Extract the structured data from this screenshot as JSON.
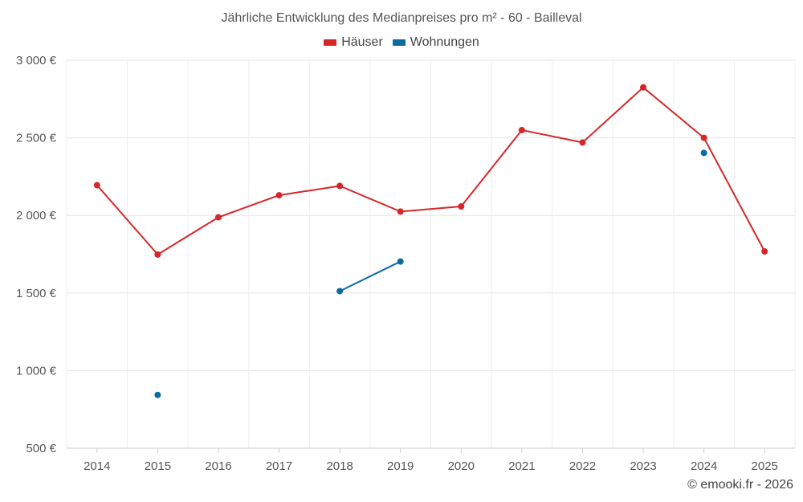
{
  "chart_data": {
    "type": "line",
    "title": "Jährliche Entwicklung des Medianpreises pro m² - 60 - Bailleval",
    "categories": [
      "2014",
      "2015",
      "2016",
      "2017",
      "2018",
      "2019",
      "2020",
      "2021",
      "2022",
      "2023",
      "2024",
      "2025"
    ],
    "series": [
      {
        "name": "Häuser",
        "color": "#d62728",
        "values": [
          2195,
          1748,
          1988,
          2130,
          2190,
          2025,
          2058,
          2550,
          2470,
          2825,
          2500,
          1768
        ]
      },
      {
        "name": "Wohnungen",
        "color": "#0b6aa2",
        "values": [
          null,
          843,
          null,
          null,
          1512,
          1703,
          null,
          null,
          null,
          null,
          2403,
          null
        ]
      }
    ],
    "ylim": [
      500,
      3000
    ],
    "yticks": [
      500,
      1000,
      1500,
      2000,
      2500,
      3000
    ],
    "ytick_labels": [
      "500 €",
      "1 000 €",
      "1 500 €",
      "2 000 €",
      "2 500 €",
      "3 000 €"
    ],
    "grid": true,
    "legend_position": "top-center"
  },
  "footer": {
    "credit": "© emooki.fr - 2026"
  }
}
